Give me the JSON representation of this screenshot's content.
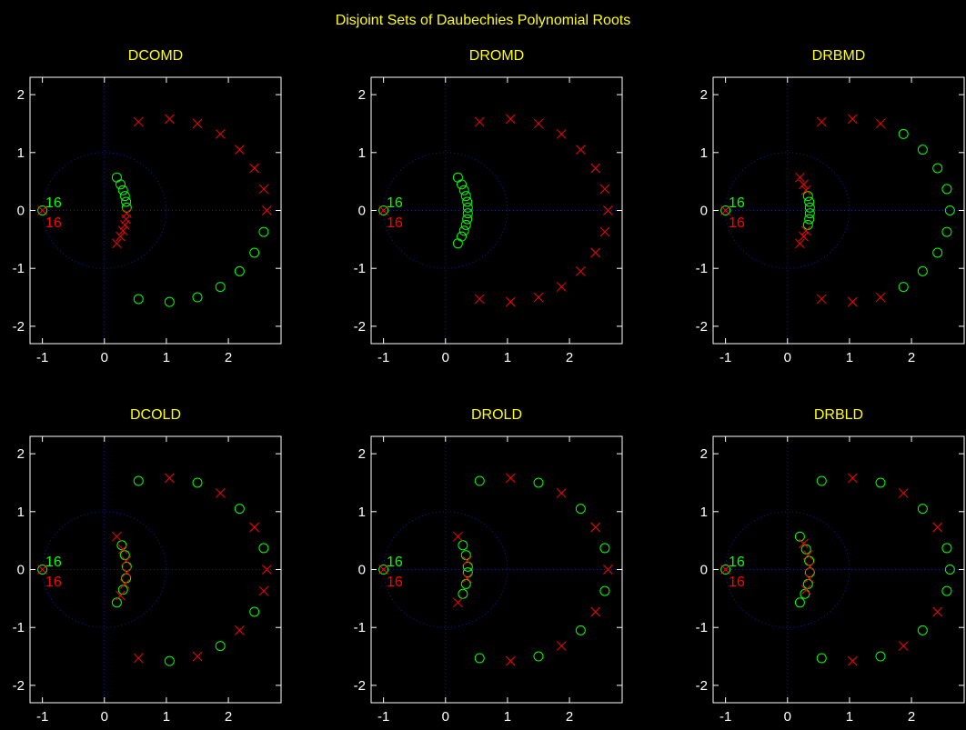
{
  "figure": {
    "title": "Disjoint Sets of Daubechies Polynomial Roots",
    "colors": {
      "zero_marker": "#00ff00",
      "cross_marker": "#ff0000",
      "title": "#ffff00",
      "axes": "#ffffff",
      "background": "#000000",
      "guides": "#1a1aa8"
    }
  },
  "chart_data": [
    {
      "type": "scatter",
      "title": "DCOMD",
      "xlim": [
        -1.2,
        2.85
      ],
      "ylim": [
        -2.3,
        2.3
      ],
      "xticks": [
        "-1",
        "0",
        "1",
        "2"
      ],
      "yticks": [
        "-2",
        "-1",
        "0",
        "1",
        "2"
      ],
      "annotations": [
        {
          "text": "16",
          "color": "#00ff00",
          "x": -0.95,
          "y": 0.15
        },
        {
          "text": "16",
          "color": "#ff0000",
          "x": -0.95,
          "y": -0.2
        }
      ],
      "series": [
        {
          "marker": "o",
          "color": "#00ff00",
          "points": [
            [
              -1,
              0
            ],
            [
              0.2,
              0.57
            ],
            [
              0.26,
              0.45
            ],
            [
              0.3,
              0.35
            ],
            [
              0.33,
              0.25
            ],
            [
              0.35,
              0.15
            ],
            [
              0.36,
              0.05
            ],
            [
              0.55,
              -1.53
            ],
            [
              1.05,
              -1.58
            ],
            [
              1.5,
              -1.5
            ],
            [
              1.87,
              -1.32
            ],
            [
              2.18,
              -1.05
            ],
            [
              2.42,
              -0.73
            ],
            [
              2.57,
              -0.37
            ]
          ]
        },
        {
          "marker": "x",
          "color": "#ff0000",
          "points": [
            [
              -1,
              0
            ],
            [
              0.36,
              -0.05
            ],
            [
              0.35,
              -0.15
            ],
            [
              0.33,
              -0.25
            ],
            [
              0.3,
              -0.35
            ],
            [
              0.26,
              -0.45
            ],
            [
              0.2,
              -0.57
            ],
            [
              0.55,
              1.53
            ],
            [
              1.05,
              1.58
            ],
            [
              1.5,
              1.5
            ],
            [
              1.87,
              1.32
            ],
            [
              2.18,
              1.05
            ],
            [
              2.42,
              0.73
            ],
            [
              2.57,
              0.37
            ],
            [
              2.62,
              0
            ]
          ]
        }
      ]
    },
    {
      "type": "scatter",
      "title": "DROMD",
      "xlim": [
        -1.2,
        2.85
      ],
      "ylim": [
        -2.3,
        2.3
      ],
      "xticks": [
        "-1",
        "0",
        "1",
        "2"
      ],
      "yticks": [
        "-2",
        "-1",
        "0",
        "1",
        "2"
      ],
      "annotations": [
        {
          "text": "16",
          "color": "#00ff00",
          "x": -0.95,
          "y": 0.15
        },
        {
          "text": "16",
          "color": "#ff0000",
          "x": -0.95,
          "y": -0.2
        }
      ],
      "series": [
        {
          "marker": "o",
          "color": "#00ff00",
          "points": [
            [
              -1,
              0
            ],
            [
              0.2,
              0.57
            ],
            [
              0.26,
              0.45
            ],
            [
              0.3,
              0.35
            ],
            [
              0.33,
              0.25
            ],
            [
              0.35,
              0.15
            ],
            [
              0.36,
              0.05
            ],
            [
              0.36,
              -0.05
            ],
            [
              0.35,
              -0.15
            ],
            [
              0.33,
              -0.25
            ],
            [
              0.3,
              -0.35
            ],
            [
              0.26,
              -0.45
            ],
            [
              0.2,
              -0.57
            ]
          ]
        },
        {
          "marker": "x",
          "color": "#ff0000",
          "points": [
            [
              -1,
              0
            ],
            [
              0.55,
              1.53
            ],
            [
              1.05,
              1.58
            ],
            [
              1.5,
              1.5
            ],
            [
              1.87,
              1.32
            ],
            [
              2.18,
              1.05
            ],
            [
              2.42,
              0.73
            ],
            [
              2.57,
              0.37
            ],
            [
              2.62,
              0
            ],
            [
              2.57,
              -0.37
            ],
            [
              2.42,
              -0.73
            ],
            [
              2.18,
              -1.05
            ],
            [
              1.87,
              -1.32
            ],
            [
              1.5,
              -1.5
            ],
            [
              1.05,
              -1.58
            ],
            [
              0.55,
              -1.53
            ]
          ]
        }
      ]
    },
    {
      "type": "scatter",
      "title": "DRBMD",
      "xlim": [
        -1.2,
        2.85
      ],
      "ylim": [
        -2.3,
        2.3
      ],
      "xticks": [
        "-1",
        "0",
        "1",
        "2"
      ],
      "yticks": [
        "-2",
        "-1",
        "0",
        "1",
        "2"
      ],
      "annotations": [
        {
          "text": "16",
          "color": "#00ff00",
          "x": -0.95,
          "y": 0.15
        },
        {
          "text": "16",
          "color": "#ff0000",
          "x": -0.95,
          "y": -0.2
        }
      ],
      "series": [
        {
          "marker": "o",
          "color": "#00ff00",
          "points": [
            [
              -1,
              0
            ],
            [
              0.33,
              0.25
            ],
            [
              0.35,
              0.15
            ],
            [
              0.36,
              0.05
            ],
            [
              0.36,
              -0.05
            ],
            [
              0.35,
              -0.15
            ],
            [
              0.33,
              -0.25
            ],
            [
              1.87,
              1.32
            ],
            [
              2.18,
              1.05
            ],
            [
              2.42,
              0.73
            ],
            [
              2.57,
              0.37
            ],
            [
              2.62,
              0
            ],
            [
              2.57,
              -0.37
            ],
            [
              2.42,
              -0.73
            ],
            [
              2.18,
              -1.05
            ],
            [
              1.87,
              -1.32
            ]
          ]
        },
        {
          "marker": "x",
          "color": "#ff0000",
          "points": [
            [
              -1,
              0
            ],
            [
              0.2,
              0.57
            ],
            [
              0.26,
              0.45
            ],
            [
              0.3,
              0.35
            ],
            [
              0.3,
              -0.35
            ],
            [
              0.26,
              -0.45
            ],
            [
              0.2,
              -0.57
            ],
            [
              0.55,
              1.53
            ],
            [
              1.05,
              1.58
            ],
            [
              1.5,
              1.5
            ],
            [
              0.55,
              -1.53
            ],
            [
              1.05,
              -1.58
            ],
            [
              1.5,
              -1.5
            ]
          ]
        }
      ]
    },
    {
      "type": "scatter",
      "title": "DCOLD",
      "xlim": [
        -1.2,
        2.85
      ],
      "ylim": [
        -2.3,
        2.3
      ],
      "xticks": [
        "-1",
        "0",
        "1",
        "2"
      ],
      "yticks": [
        "-2",
        "-1",
        "0",
        "1",
        "2"
      ],
      "annotations": [
        {
          "text": "16",
          "color": "#00ff00",
          "x": -0.95,
          "y": 0.15
        },
        {
          "text": "16",
          "color": "#ff0000",
          "x": -0.95,
          "y": -0.2
        }
      ],
      "series": [
        {
          "marker": "o",
          "color": "#00ff00",
          "points": [
            [
              -1,
              0
            ],
            [
              0.28,
              0.42
            ],
            [
              0.33,
              0.25
            ],
            [
              0.36,
              0.05
            ],
            [
              0.35,
              -0.15
            ],
            [
              0.3,
              -0.35
            ],
            [
              0.2,
              -0.57
            ],
            [
              0.55,
              1.53
            ],
            [
              1.5,
              1.5
            ],
            [
              2.18,
              1.05
            ],
            [
              2.57,
              0.37
            ],
            [
              2.42,
              -0.73
            ],
            [
              1.87,
              -1.32
            ],
            [
              1.05,
              -1.58
            ]
          ]
        },
        {
          "marker": "x",
          "color": "#ff0000",
          "points": [
            [
              -1,
              0
            ],
            [
              0.2,
              0.57
            ],
            [
              0.3,
              0.35
            ],
            [
              0.35,
              0.15
            ],
            [
              0.36,
              -0.05
            ],
            [
              0.33,
              -0.25
            ],
            [
              0.26,
              -0.45
            ],
            [
              1.05,
              1.58
            ],
            [
              1.87,
              1.32
            ],
            [
              2.42,
              0.73
            ],
            [
              2.62,
              0
            ],
            [
              2.57,
              -0.37
            ],
            [
              2.18,
              -1.05
            ],
            [
              1.5,
              -1.5
            ],
            [
              0.55,
              -1.53
            ]
          ]
        }
      ]
    },
    {
      "type": "scatter",
      "title": "DROLD",
      "xlim": [
        -1.2,
        2.85
      ],
      "ylim": [
        -2.3,
        2.3
      ],
      "xticks": [
        "-1",
        "0",
        "1",
        "2"
      ],
      "yticks": [
        "-2",
        "-1",
        "0",
        "1",
        "2"
      ],
      "annotations": [
        {
          "text": "16",
          "color": "#00ff00",
          "x": -0.95,
          "y": 0.15
        },
        {
          "text": "16",
          "color": "#ff0000",
          "x": -0.95,
          "y": -0.2
        }
      ],
      "series": [
        {
          "marker": "o",
          "color": "#00ff00",
          "points": [
            [
              -1,
              0
            ],
            [
              0.28,
              0.42
            ],
            [
              0.33,
              0.25
            ],
            [
              0.36,
              0.05
            ],
            [
              0.36,
              -0.05
            ],
            [
              0.33,
              -0.25
            ],
            [
              0.28,
              -0.42
            ],
            [
              0.55,
              1.53
            ],
            [
              1.5,
              1.5
            ],
            [
              2.18,
              1.05
            ],
            [
              2.57,
              0.37
            ],
            [
              2.57,
              -0.37
            ],
            [
              2.18,
              -1.05
            ],
            [
              1.5,
              -1.5
            ],
            [
              0.55,
              -1.53
            ]
          ]
        },
        {
          "marker": "x",
          "color": "#ff0000",
          "points": [
            [
              -1,
              0
            ],
            [
              0.2,
              0.57
            ],
            [
              0.35,
              0.15
            ],
            [
              0.35,
              -0.15
            ],
            [
              0.2,
              -0.57
            ],
            [
              1.05,
              1.58
            ],
            [
              1.87,
              1.32
            ],
            [
              2.42,
              0.73
            ],
            [
              2.62,
              0
            ],
            [
              2.42,
              -0.73
            ],
            [
              1.87,
              -1.32
            ],
            [
              1.05,
              -1.58
            ]
          ]
        }
      ]
    },
    {
      "type": "scatter",
      "title": "DRBLD",
      "xlim": [
        -1.2,
        2.85
      ],
      "ylim": [
        -2.3,
        2.3
      ],
      "xticks": [
        "-1",
        "0",
        "1",
        "2"
      ],
      "yticks": [
        "-2",
        "-1",
        "0",
        "1",
        "2"
      ],
      "annotations": [
        {
          "text": "16",
          "color": "#00ff00",
          "x": -0.95,
          "y": 0.15
        },
        {
          "text": "16",
          "color": "#ff0000",
          "x": -0.95,
          "y": -0.2
        }
      ],
      "series": [
        {
          "marker": "o",
          "color": "#00ff00",
          "points": [
            [
              -1,
              0
            ],
            [
              0.2,
              0.57
            ],
            [
              0.3,
              0.35
            ],
            [
              0.35,
              0.15
            ],
            [
              0.36,
              -0.05
            ],
            [
              0.33,
              -0.25
            ],
            [
              0.28,
              -0.42
            ],
            [
              0.2,
              -0.57
            ],
            [
              0.55,
              1.53
            ],
            [
              1.5,
              1.5
            ],
            [
              2.18,
              1.05
            ],
            [
              2.57,
              0.37
            ],
            [
              2.62,
              0
            ],
            [
              2.57,
              -0.37
            ],
            [
              2.18,
              -1.05
            ],
            [
              1.5,
              -1.5
            ],
            [
              0.55,
              -1.53
            ]
          ]
        },
        {
          "marker": "x",
          "color": "#ff0000",
          "points": [
            [
              -1,
              0
            ],
            [
              0.26,
              0.45
            ],
            [
              0.33,
              0.25
            ],
            [
              0.36,
              0.05
            ],
            [
              0.35,
              -0.15
            ],
            [
              0.3,
              -0.35
            ],
            [
              1.05,
              1.58
            ],
            [
              1.87,
              1.32
            ],
            [
              2.42,
              0.73
            ],
            [
              2.42,
              -0.73
            ],
            [
              1.87,
              -1.32
            ],
            [
              1.05,
              -1.58
            ]
          ]
        }
      ]
    }
  ]
}
